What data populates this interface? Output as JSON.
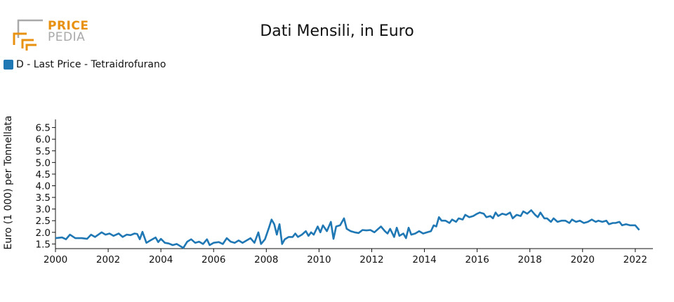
{
  "logo": {
    "line1": "PRICE",
    "line2": "PEDIA",
    "accent": "#e8900f",
    "muted": "#a9a9a9"
  },
  "chart_data": {
    "type": "line",
    "title": "Dati Mensili, in Euro",
    "ylabel": "Euro (1 000) per Tonnellata",
    "xlabel": "",
    "xlim": [
      2000.0,
      2022.67
    ],
    "ylim": [
      1.3,
      6.85
    ],
    "xticks": [
      "2000",
      "2002",
      "2004",
      "2006",
      "2008",
      "2010",
      "2012",
      "2014",
      "2016",
      "2018",
      "2020",
      "2022"
    ],
    "yticks": [
      "1.5",
      "2.0",
      "2.5",
      "3.0",
      "3.5",
      "4.0",
      "4.5",
      "5.0",
      "5.5",
      "6.0",
      "6.5"
    ],
    "legend_position": "top-left",
    "color": "#1f77b4",
    "series": [
      {
        "name": "D - Last Price - Tetraidrofurano",
        "points": [
          [
            2000.0,
            1.75
          ],
          [
            2000.25,
            1.78
          ],
          [
            2000.4,
            1.7
          ],
          [
            2000.55,
            1.9
          ],
          [
            2000.75,
            1.75
          ],
          [
            2001.0,
            1.75
          ],
          [
            2001.2,
            1.72
          ],
          [
            2001.35,
            1.9
          ],
          [
            2001.5,
            1.8
          ],
          [
            2001.75,
            2.0
          ],
          [
            2001.9,
            1.9
          ],
          [
            2002.05,
            1.95
          ],
          [
            2002.2,
            1.85
          ],
          [
            2002.4,
            1.95
          ],
          [
            2002.55,
            1.8
          ],
          [
            2002.7,
            1.9
          ],
          [
            2002.85,
            1.88
          ],
          [
            2003.0,
            1.95
          ],
          [
            2003.1,
            1.93
          ],
          [
            2003.2,
            1.7
          ],
          [
            2003.3,
            2.02
          ],
          [
            2003.45,
            1.55
          ],
          [
            2003.6,
            1.65
          ],
          [
            2003.8,
            1.78
          ],
          [
            2003.9,
            1.58
          ],
          [
            2004.0,
            1.72
          ],
          [
            2004.15,
            1.55
          ],
          [
            2004.3,
            1.52
          ],
          [
            2004.45,
            1.45
          ],
          [
            2004.6,
            1.5
          ],
          [
            2004.75,
            1.4
          ],
          [
            2004.85,
            1.33
          ],
          [
            2005.0,
            1.6
          ],
          [
            2005.15,
            1.7
          ],
          [
            2005.3,
            1.55
          ],
          [
            2005.45,
            1.6
          ],
          [
            2005.6,
            1.5
          ],
          [
            2005.75,
            1.7
          ],
          [
            2005.85,
            1.45
          ],
          [
            2006.0,
            1.55
          ],
          [
            2006.2,
            1.58
          ],
          [
            2006.35,
            1.5
          ],
          [
            2006.5,
            1.75
          ],
          [
            2006.65,
            1.6
          ],
          [
            2006.8,
            1.55
          ],
          [
            2006.95,
            1.65
          ],
          [
            2007.1,
            1.55
          ],
          [
            2007.25,
            1.65
          ],
          [
            2007.4,
            1.75
          ],
          [
            2007.55,
            1.55
          ],
          [
            2007.7,
            2.0
          ],
          [
            2007.8,
            1.5
          ],
          [
            2007.95,
            1.7
          ],
          [
            2008.1,
            2.2
          ],
          [
            2008.2,
            2.55
          ],
          [
            2008.3,
            2.35
          ],
          [
            2008.4,
            1.9
          ],
          [
            2008.5,
            2.35
          ],
          [
            2008.6,
            1.5
          ],
          [
            2008.7,
            1.7
          ],
          [
            2008.85,
            1.8
          ],
          [
            2009.0,
            1.8
          ],
          [
            2009.1,
            1.95
          ],
          [
            2009.2,
            1.8
          ],
          [
            2009.35,
            1.9
          ],
          [
            2009.5,
            2.05
          ],
          [
            2009.6,
            1.85
          ],
          [
            2009.7,
            2.0
          ],
          [
            2009.8,
            1.9
          ],
          [
            2009.95,
            2.25
          ],
          [
            2010.05,
            2.0
          ],
          [
            2010.15,
            2.3
          ],
          [
            2010.3,
            2.05
          ],
          [
            2010.45,
            2.45
          ],
          [
            2010.55,
            1.72
          ],
          [
            2010.65,
            2.25
          ],
          [
            2010.8,
            2.3
          ],
          [
            2010.95,
            2.6
          ],
          [
            2011.05,
            2.15
          ],
          [
            2011.2,
            2.05
          ],
          [
            2011.35,
            2.0
          ],
          [
            2011.5,
            1.97
          ],
          [
            2011.65,
            2.1
          ],
          [
            2011.8,
            2.08
          ],
          [
            2011.95,
            2.1
          ],
          [
            2012.1,
            2.0
          ],
          [
            2012.25,
            2.15
          ],
          [
            2012.35,
            2.25
          ],
          [
            2012.5,
            2.05
          ],
          [
            2012.6,
            1.95
          ],
          [
            2012.7,
            2.15
          ],
          [
            2012.85,
            1.8
          ],
          [
            2012.95,
            2.2
          ],
          [
            2013.05,
            1.85
          ],
          [
            2013.2,
            1.95
          ],
          [
            2013.3,
            1.75
          ],
          [
            2013.4,
            2.2
          ],
          [
            2013.5,
            1.9
          ],
          [
            2013.65,
            1.95
          ],
          [
            2013.8,
            2.05
          ],
          [
            2013.95,
            1.95
          ],
          [
            2014.1,
            2.0
          ],
          [
            2014.25,
            2.05
          ],
          [
            2014.35,
            2.3
          ],
          [
            2014.45,
            2.25
          ],
          [
            2014.55,
            2.65
          ],
          [
            2014.65,
            2.5
          ],
          [
            2014.8,
            2.5
          ],
          [
            2014.95,
            2.4
          ],
          [
            2015.05,
            2.55
          ],
          [
            2015.2,
            2.45
          ],
          [
            2015.3,
            2.6
          ],
          [
            2015.45,
            2.55
          ],
          [
            2015.55,
            2.75
          ],
          [
            2015.7,
            2.65
          ],
          [
            2015.85,
            2.7
          ],
          [
            2016.0,
            2.8
          ],
          [
            2016.1,
            2.85
          ],
          [
            2016.25,
            2.8
          ],
          [
            2016.35,
            2.65
          ],
          [
            2016.5,
            2.7
          ],
          [
            2016.6,
            2.6
          ],
          [
            2016.7,
            2.85
          ],
          [
            2016.8,
            2.7
          ],
          [
            2016.95,
            2.8
          ],
          [
            2017.1,
            2.75
          ],
          [
            2017.25,
            2.85
          ],
          [
            2017.35,
            2.6
          ],
          [
            2017.5,
            2.75
          ],
          [
            2017.65,
            2.7
          ],
          [
            2017.75,
            2.9
          ],
          [
            2017.9,
            2.8
          ],
          [
            2018.05,
            2.95
          ],
          [
            2018.2,
            2.75
          ],
          [
            2018.3,
            2.65
          ],
          [
            2018.4,
            2.85
          ],
          [
            2018.55,
            2.6
          ],
          [
            2018.65,
            2.6
          ],
          [
            2018.8,
            2.45
          ],
          [
            2018.9,
            2.6
          ],
          [
            2019.05,
            2.45
          ],
          [
            2019.2,
            2.5
          ],
          [
            2019.35,
            2.5
          ],
          [
            2019.5,
            2.4
          ],
          [
            2019.6,
            2.55
          ],
          [
            2019.75,
            2.45
          ],
          [
            2019.9,
            2.5
          ],
          [
            2020.05,
            2.4
          ],
          [
            2020.2,
            2.45
          ],
          [
            2020.35,
            2.55
          ],
          [
            2020.5,
            2.45
          ],
          [
            2020.6,
            2.5
          ],
          [
            2020.75,
            2.45
          ],
          [
            2020.9,
            2.5
          ],
          [
            2021.0,
            2.35
          ],
          [
            2021.15,
            2.4
          ],
          [
            2021.25,
            2.4
          ],
          [
            2021.4,
            2.45
          ],
          [
            2021.5,
            2.3
          ],
          [
            2021.65,
            2.35
          ],
          [
            2021.8,
            2.3
          ],
          [
            2022.0,
            2.3
          ],
          [
            2022.15,
            2.1
          ]
        ]
      }
    ]
  }
}
